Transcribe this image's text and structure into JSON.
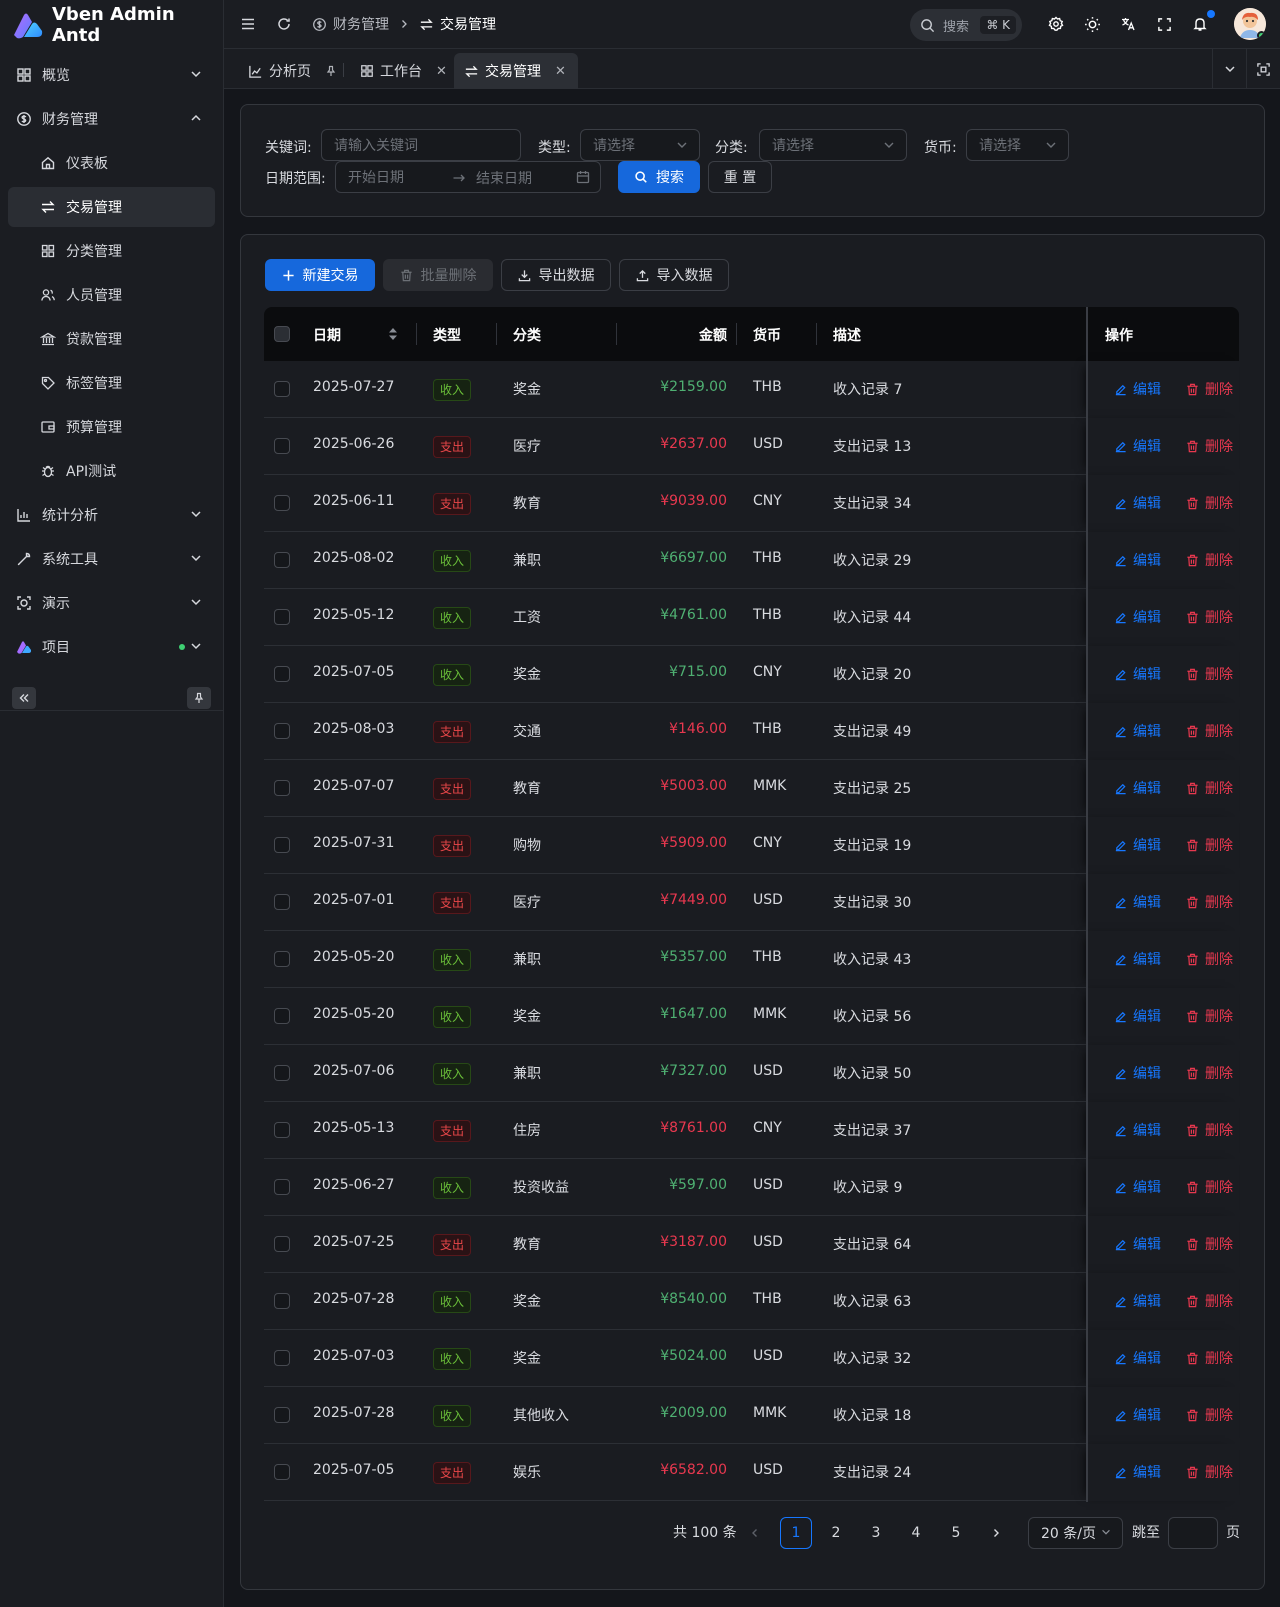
{
  "app": {
    "title": "Vben Admin Antd"
  },
  "sidebar": {
    "items": [
      {
        "label": "概览",
        "icon": "overview-icon"
      },
      {
        "label": "财务管理",
        "icon": "finance-icon"
      },
      {
        "label": "仪表板",
        "icon": "home-icon"
      },
      {
        "label": "交易管理",
        "icon": "transfer-icon"
      },
      {
        "label": "分类管理",
        "icon": "category-icon"
      },
      {
        "label": "人员管理",
        "icon": "people-icon"
      },
      {
        "label": "贷款管理",
        "icon": "bank-icon"
      },
      {
        "label": "标签管理",
        "icon": "tag-icon"
      },
      {
        "label": "预算管理",
        "icon": "wallet-icon"
      },
      {
        "label": "API测试",
        "icon": "bug-icon"
      },
      {
        "label": "统计分析",
        "icon": "chart-icon"
      },
      {
        "label": "系统工具",
        "icon": "wrench-icon"
      },
      {
        "label": "演示",
        "icon": "demo-icon"
      },
      {
        "label": "项目",
        "icon": "project-icon"
      }
    ]
  },
  "header": {
    "breadcrumb": [
      "财务管理",
      "交易管理"
    ],
    "search_label": "搜索",
    "search_shortcut": "⌘ K"
  },
  "tabs": [
    {
      "label": "分析页"
    },
    {
      "label": "工作台"
    },
    {
      "label": "交易管理"
    }
  ],
  "filters": {
    "keyword_label": "关键词:",
    "keyword_placeholder": "请输入关键词",
    "type_label": "类型:",
    "type_placeholder": "请选择",
    "category_label": "分类:",
    "category_placeholder": "请选择",
    "currency_label": "货币:",
    "currency_placeholder": "请选择",
    "date_label": "日期范围:",
    "date_start_placeholder": "开始日期",
    "date_end_placeholder": "结束日期",
    "search_button": "搜索",
    "reset_button": "重 置"
  },
  "toolbar": {
    "new_button": "新建交易",
    "batch_delete_button": "批量删除",
    "export_button": "导出数据",
    "import_button": "导入数据"
  },
  "table": {
    "columns": [
      "日期",
      "类型",
      "分类",
      "金额",
      "货币",
      "描述",
      "操作"
    ],
    "edit_label": "编辑",
    "delete_label": "删除",
    "rows": [
      {
        "date": "2025-07-27",
        "type": "收入",
        "kind": "in",
        "category": "奖金",
        "amount": "¥2159.00",
        "currency": "THB",
        "desc": "收入记录 7"
      },
      {
        "date": "2025-06-26",
        "type": "支出",
        "kind": "out",
        "category": "医疗",
        "amount": "¥2637.00",
        "currency": "USD",
        "desc": "支出记录 13"
      },
      {
        "date": "2025-06-11",
        "type": "支出",
        "kind": "out",
        "category": "教育",
        "amount": "¥9039.00",
        "currency": "CNY",
        "desc": "支出记录 34"
      },
      {
        "date": "2025-08-02",
        "type": "收入",
        "kind": "in",
        "category": "兼职",
        "amount": "¥6697.00",
        "currency": "THB",
        "desc": "收入记录 29"
      },
      {
        "date": "2025-05-12",
        "type": "收入",
        "kind": "in",
        "category": "工资",
        "amount": "¥4761.00",
        "currency": "THB",
        "desc": "收入记录 44"
      },
      {
        "date": "2025-07-05",
        "type": "收入",
        "kind": "in",
        "category": "奖金",
        "amount": "¥715.00",
        "currency": "CNY",
        "desc": "收入记录 20"
      },
      {
        "date": "2025-08-03",
        "type": "支出",
        "kind": "out",
        "category": "交通",
        "amount": "¥146.00",
        "currency": "THB",
        "desc": "支出记录 49"
      },
      {
        "date": "2025-07-07",
        "type": "支出",
        "kind": "out",
        "category": "教育",
        "amount": "¥5003.00",
        "currency": "MMK",
        "desc": "支出记录 25"
      },
      {
        "date": "2025-07-31",
        "type": "支出",
        "kind": "out",
        "category": "购物",
        "amount": "¥5909.00",
        "currency": "CNY",
        "desc": "支出记录 19"
      },
      {
        "date": "2025-07-01",
        "type": "支出",
        "kind": "out",
        "category": "医疗",
        "amount": "¥7449.00",
        "currency": "USD",
        "desc": "支出记录 30"
      },
      {
        "date": "2025-05-20",
        "type": "收入",
        "kind": "in",
        "category": "兼职",
        "amount": "¥5357.00",
        "currency": "THB",
        "desc": "收入记录 43"
      },
      {
        "date": "2025-05-20",
        "type": "收入",
        "kind": "in",
        "category": "奖金",
        "amount": "¥1647.00",
        "currency": "MMK",
        "desc": "收入记录 56"
      },
      {
        "date": "2025-07-06",
        "type": "收入",
        "kind": "in",
        "category": "兼职",
        "amount": "¥7327.00",
        "currency": "USD",
        "desc": "收入记录 50"
      },
      {
        "date": "2025-05-13",
        "type": "支出",
        "kind": "out",
        "category": "住房",
        "amount": "¥8761.00",
        "currency": "CNY",
        "desc": "支出记录 37"
      },
      {
        "date": "2025-06-27",
        "type": "收入",
        "kind": "in",
        "category": "投资收益",
        "amount": "¥597.00",
        "currency": "USD",
        "desc": "收入记录 9"
      },
      {
        "date": "2025-07-25",
        "type": "支出",
        "kind": "out",
        "category": "教育",
        "amount": "¥3187.00",
        "currency": "USD",
        "desc": "支出记录 64"
      },
      {
        "date": "2025-07-28",
        "type": "收入",
        "kind": "in",
        "category": "奖金",
        "amount": "¥8540.00",
        "currency": "THB",
        "desc": "收入记录 63"
      },
      {
        "date": "2025-07-03",
        "type": "收入",
        "kind": "in",
        "category": "奖金",
        "amount": "¥5024.00",
        "currency": "USD",
        "desc": "收入记录 32"
      },
      {
        "date": "2025-07-28",
        "type": "收入",
        "kind": "in",
        "category": "其他收入",
        "amount": "¥2009.00",
        "currency": "MMK",
        "desc": "收入记录 18"
      },
      {
        "date": "2025-07-05",
        "type": "支出",
        "kind": "out",
        "category": "娱乐",
        "amount": "¥6582.00",
        "currency": "USD",
        "desc": "支出记录 24"
      }
    ]
  },
  "pagination": {
    "total_text": "共 100 条",
    "pages": [
      "1",
      "2",
      "3",
      "4",
      "5"
    ],
    "current": "1",
    "page_size": "20 条/页",
    "jump_label": "跳至",
    "page_suffix": "页"
  },
  "colors": {
    "primary": "#1668dc",
    "income": "#4fb072",
    "expense": "#e8384f"
  }
}
